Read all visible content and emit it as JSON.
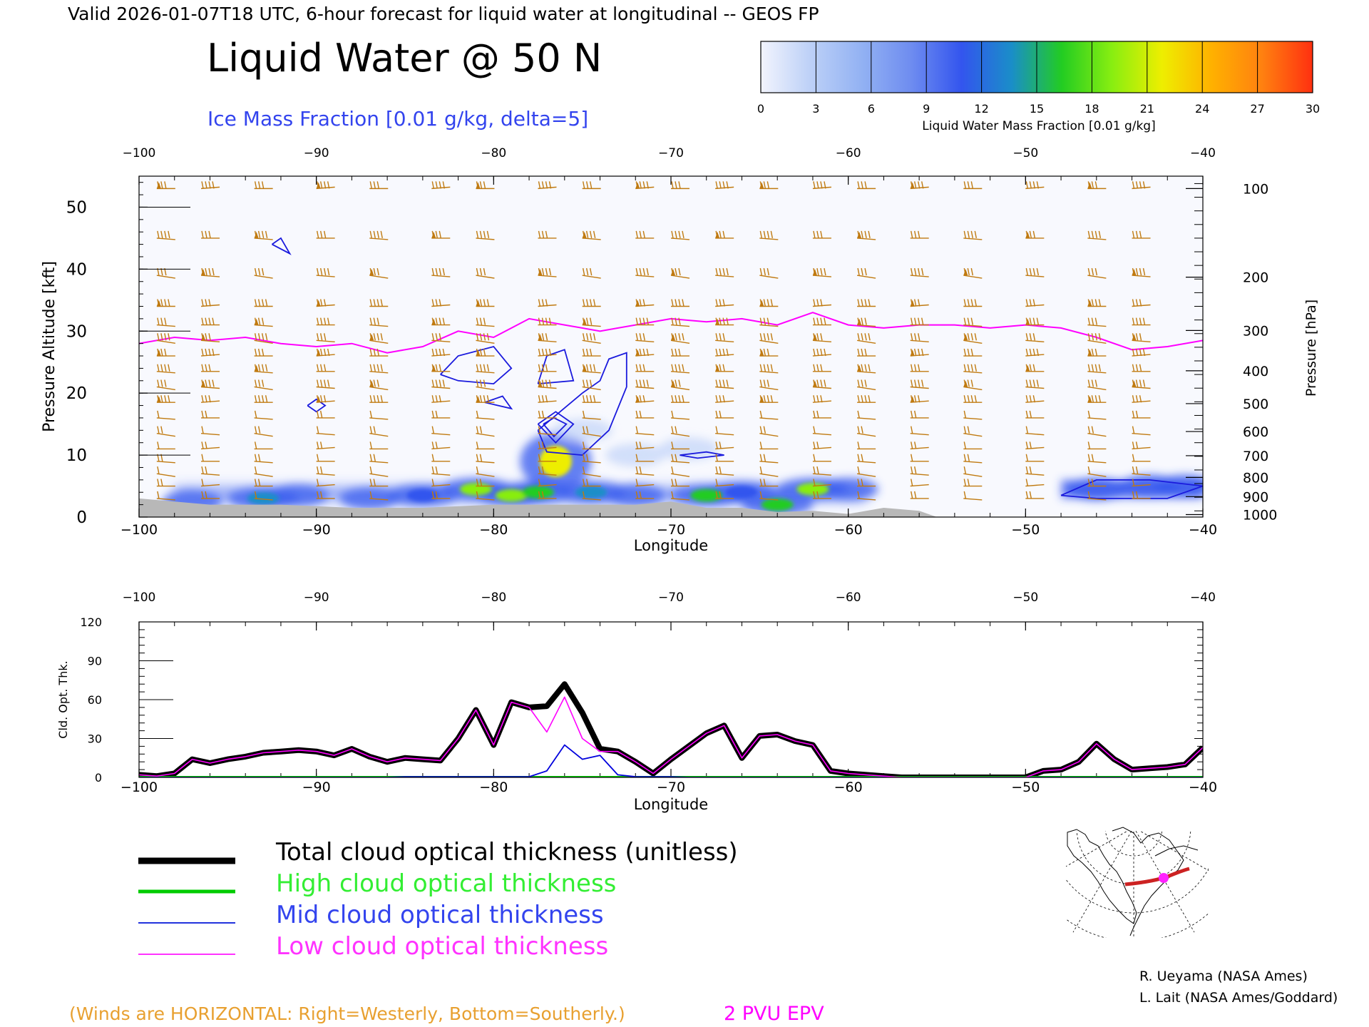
{
  "header": {
    "valid_line": "Valid 2026-01-07T18 UTC, 6-hour forecast for liquid water at longitudinal -- GEOS FP",
    "title": "Liquid Water @ 50 N",
    "subtitle": "Ice Mass Fraction [0.01 g/kg, delta=5]"
  },
  "colorbar": {
    "ticks": [
      "0",
      "3",
      "6",
      "9",
      "12",
      "15",
      "18",
      "21",
      "24",
      "27",
      "30"
    ],
    "label": "Liquid Water Mass Fraction [0.01 g/kg]",
    "colors": [
      "#f2f4fd",
      "#bcd0f7",
      "#93b2f3",
      "#6e8cf0",
      "#3355ee",
      "#1a8ec8",
      "#22cc22",
      "#88ee11",
      "#eeee00",
      "#ffb000",
      "#ff8010",
      "#ff3010"
    ]
  },
  "chart_data": [
    {
      "type": "heatmap",
      "title": "Liquid Water @ 50 N",
      "xlabel": "Longitude",
      "ylabel": "Pressure Altitude [kft]",
      "y2label": "Pressure [hPa]",
      "xlim": [
        -100,
        -40
      ],
      "ylim": [
        0,
        55
      ],
      "x_ticks": [
        "−100",
        "−90",
        "−80",
        "−70",
        "−60",
        "−50",
        "−40"
      ],
      "y_ticks": [
        "0",
        "10",
        "20",
        "30",
        "40",
        "50"
      ],
      "pressure_ticks": [
        "100",
        "200",
        "300",
        "400",
        "500",
        "600",
        "700",
        "800",
        "900",
        "1000"
      ],
      "pressure_tick_kft": [
        53.0,
        38.7,
        30.1,
        23.6,
        18.3,
        13.8,
        9.9,
        6.4,
        3.3,
        0.4
      ],
      "epv_2pvu_kft": [
        [
          -100,
          28
        ],
        [
          -98,
          29
        ],
        [
          -96,
          28.5
        ],
        [
          -94,
          29
        ],
        [
          -92,
          28
        ],
        [
          -90,
          27.5
        ],
        [
          -88,
          28
        ],
        [
          -86,
          26.5
        ],
        [
          -84,
          27.5
        ],
        [
          -82,
          30
        ],
        [
          -80,
          29
        ],
        [
          -78,
          32
        ],
        [
          -76,
          31
        ],
        [
          -74,
          30
        ],
        [
          -72,
          31
        ],
        [
          -70,
          32
        ],
        [
          -68,
          31.5
        ],
        [
          -66,
          32
        ],
        [
          -64,
          31
        ],
        [
          -62,
          33
        ],
        [
          -60,
          31
        ],
        [
          -58,
          30.5
        ],
        [
          -56,
          31
        ],
        [
          -54,
          31
        ],
        [
          -52,
          30.5
        ],
        [
          -50,
          31
        ],
        [
          -48,
          30.5
        ],
        [
          -46,
          29
        ],
        [
          -44,
          27
        ],
        [
          -42,
          27.5
        ],
        [
          -40,
          28.5
        ]
      ],
      "liquid_water_blobs": [
        {
          "lon": -97,
          "kft": 2.5,
          "value": 6
        },
        {
          "lon": -93,
          "kft": 3,
          "value": 14
        },
        {
          "lon": -91,
          "kft": 3.5,
          "value": 10
        },
        {
          "lon": -87,
          "kft": 3,
          "value": 8
        },
        {
          "lon": -84,
          "kft": 3.5,
          "value": 12
        },
        {
          "lon": -81,
          "kft": 4.5,
          "value": 20
        },
        {
          "lon": -79,
          "kft": 3.5,
          "value": 18
        },
        {
          "lon": -77.5,
          "kft": 4,
          "value": 16
        },
        {
          "lon": -76.5,
          "kft": 9,
          "value": 22
        },
        {
          "lon": -74.5,
          "kft": 4,
          "value": 14
        },
        {
          "lon": -72,
          "kft": 3.5,
          "value": 7
        },
        {
          "lon": -68,
          "kft": 3.5,
          "value": 16
        },
        {
          "lon": -66,
          "kft": 4,
          "value": 12
        },
        {
          "lon": -64,
          "kft": 2,
          "value": 15
        },
        {
          "lon": -62,
          "kft": 4.5,
          "value": 18
        },
        {
          "lon": -60,
          "kft": 4.5,
          "value": 7
        },
        {
          "lon": -69,
          "kft": 11,
          "value": 4
        },
        {
          "lon": -72,
          "kft": 10,
          "value": 3
        },
        {
          "lon": -75,
          "kft": 14,
          "value": 3
        },
        {
          "lon": -46,
          "kft": 4.5,
          "value": 8
        },
        {
          "lon": -43,
          "kft": 5,
          "value": 7
        },
        {
          "lon": -41,
          "kft": 5,
          "value": 6
        }
      ],
      "ice_contours_kft": [
        [
          [
            -83,
            23
          ],
          [
            -82,
            26
          ],
          [
            -80,
            27.5
          ],
          [
            -79,
            24
          ],
          [
            -80,
            21.5
          ],
          [
            -82,
            22
          ],
          [
            -83,
            23
          ]
        ],
        [
          [
            -80.5,
            18.5
          ],
          [
            -79.5,
            19.5
          ],
          [
            -79,
            17.5
          ],
          [
            -80.5,
            18.5
          ]
        ],
        [
          [
            -77.5,
            21.5
          ],
          [
            -77,
            26
          ],
          [
            -76,
            27
          ],
          [
            -75.5,
            22
          ],
          [
            -77.5,
            21.5
          ]
        ],
        [
          [
            -77.5,
            14
          ],
          [
            -75,
            20
          ],
          [
            -74,
            22
          ],
          [
            -73.5,
            25.5
          ],
          [
            -72.5,
            26.5
          ],
          [
            -72.5,
            21
          ],
          [
            -73.5,
            14
          ],
          [
            -75,
            10
          ],
          [
            -77,
            10.5
          ],
          [
            -77.5,
            14
          ]
        ],
        [
          [
            -77.5,
            15
          ],
          [
            -76.5,
            17
          ],
          [
            -75.5,
            15
          ],
          [
            -76.5,
            12
          ],
          [
            -77.5,
            15
          ]
        ],
        [
          [
            -77.2,
            15
          ],
          [
            -76.6,
            16
          ],
          [
            -75.9,
            15
          ],
          [
            -76.6,
            13
          ],
          [
            -77.2,
            15
          ]
        ],
        [
          [
            -90.5,
            18
          ],
          [
            -90,
            19
          ],
          [
            -89.5,
            18
          ],
          [
            -90,
            17
          ],
          [
            -90.5,
            18
          ]
        ],
        [
          [
            -92.5,
            44
          ],
          [
            -92,
            45
          ],
          [
            -91.5,
            42.5
          ],
          [
            -92.5,
            44
          ]
        ],
        [
          [
            -69.5,
            10
          ],
          [
            -68,
            10.5
          ],
          [
            -67,
            10
          ],
          [
            -68.5,
            9.5
          ],
          [
            -69.5,
            10
          ]
        ],
        [
          [
            -48,
            3.5
          ],
          [
            -46,
            6
          ],
          [
            -43,
            6
          ],
          [
            -40,
            5
          ],
          [
            -42,
            3
          ],
          [
            -46,
            3
          ],
          [
            -48,
            3.5
          ]
        ]
      ],
      "surface_kft": [
        [
          -100,
          3
        ],
        [
          -96,
          2
        ],
        [
          -92,
          2
        ],
        [
          -88,
          1.5
        ],
        [
          -84,
          1.5
        ],
        [
          -80,
          2
        ],
        [
          -76,
          2
        ],
        [
          -72,
          2
        ],
        [
          -70,
          2.5
        ],
        [
          -68,
          1.5
        ],
        [
          -66,
          1.5
        ],
        [
          -64,
          0.8
        ],
        [
          -62,
          1
        ],
        [
          -60,
          0.5
        ],
        [
          -58,
          1.5
        ],
        [
          -56,
          1
        ],
        [
          -55,
          0
        ],
        [
          -40,
          0
        ]
      ],
      "wind_columns_lon": [
        -99,
        -96.5,
        -93.5,
        -90,
        -87,
        -83.5,
        -81,
        -77.5,
        -75,
        -72,
        -70,
        -67.5,
        -65,
        -62,
        -59.5,
        -56.5,
        -53.5,
        -50,
        -46.5,
        -44
      ]
    },
    {
      "type": "line",
      "xlabel": "Longitude",
      "ylabel": "Cld. Opt. Thk.",
      "xlim": [
        -100,
        -40
      ],
      "ylim": [
        0,
        120
      ],
      "x_ticks": [
        "−100",
        "−90",
        "−80",
        "−70",
        "−60",
        "−50",
        "−40"
      ],
      "y_ticks": [
        "0",
        "30",
        "60",
        "90",
        "120"
      ],
      "x": [
        -100,
        -99,
        -98,
        -97,
        -96,
        -95,
        -94,
        -93,
        -92,
        -91,
        -90,
        -89,
        -88,
        -87,
        -86,
        -85,
        -84,
        -83,
        -82,
        -81,
        -80,
        -79,
        -78,
        -77,
        -76,
        -75,
        -74,
        -73,
        -72,
        -71,
        -70,
        -69,
        -68,
        -67,
        -66,
        -65,
        -64,
        -63,
        -62,
        -61,
        -60,
        -59,
        -58,
        -57,
        -56,
        -55,
        -54,
        -53,
        -52,
        -51,
        -50,
        -49,
        -48,
        -47,
        -46,
        -45,
        -44,
        -43,
        -42,
        -41,
        -40
      ],
      "series": [
        {
          "name": "Total cloud optical thickness (unitless)",
          "color": "#000000",
          "values": [
            2,
            1,
            3,
            14,
            11,
            14,
            16,
            19,
            20,
            21,
            20,
            17,
            22,
            16,
            12,
            15,
            14,
            13,
            30,
            52,
            25,
            58,
            54,
            55,
            72,
            50,
            22,
            20,
            12,
            3,
            14,
            24,
            34,
            40,
            15,
            32,
            33,
            28,
            25,
            5,
            3,
            2,
            1,
            0,
            0,
            0,
            0,
            0,
            0,
            0,
            0,
            5,
            6,
            12,
            26,
            14,
            6,
            7,
            8,
            10,
            23
          ]
        },
        {
          "name": "High cloud optical thickness",
          "color": "#00cc00",
          "values": [
            0,
            0,
            0,
            0,
            0,
            0,
            0,
            0,
            0,
            0,
            0,
            0,
            0,
            0,
            0,
            0,
            0,
            0,
            0,
            0,
            0,
            0,
            0,
            0,
            0,
            0,
            0,
            0,
            0,
            0,
            0,
            0,
            0,
            0,
            0,
            0,
            0,
            0,
            0,
            0,
            0,
            0,
            0,
            0,
            0,
            0,
            0,
            0,
            0,
            0,
            0,
            0,
            0,
            0,
            0,
            0,
            0,
            0,
            0,
            0,
            0
          ]
        },
        {
          "name": "Mid cloud optical thickness",
          "color": "#0000dd",
          "values": [
            0,
            0,
            0,
            0,
            0,
            0,
            0,
            0,
            0,
            0,
            0,
            0,
            0,
            0,
            0,
            0.5,
            0.5,
            0.5,
            0.5,
            0.5,
            0.5,
            0.5,
            0.5,
            5,
            25,
            14,
            17,
            2,
            0.5,
            0.5,
            0.5,
            0,
            0,
            0,
            0,
            0,
            0,
            0,
            0,
            0,
            0,
            0,
            0,
            0,
            0,
            0,
            0,
            0,
            0,
            0,
            0,
            0,
            0,
            0,
            0,
            0,
            0,
            0,
            0,
            0,
            0
          ]
        },
        {
          "name": "Low cloud optical thickness",
          "color": "#ff00ff",
          "values": [
            2,
            1,
            3,
            14,
            11,
            14,
            16,
            19,
            20,
            21,
            20,
            17,
            22,
            16,
            12,
            15,
            14,
            13,
            30,
            52,
            25,
            58,
            54,
            35,
            62,
            30,
            20,
            20,
            12,
            3,
            14,
            24,
            34,
            40,
            15,
            32,
            33,
            28,
            25,
            5,
            3,
            2,
            1,
            0,
            0,
            0,
            0,
            0,
            0,
            0,
            0,
            5,
            6,
            12,
            26,
            14,
            6,
            7,
            8,
            10,
            23
          ]
        }
      ]
    }
  ],
  "legend": {
    "items": [
      {
        "label": "Total cloud optical thickness (unitless)",
        "color": "#000000"
      },
      {
        "label": "High cloud optical thickness",
        "color": "#00cc00"
      },
      {
        "label": "Mid cloud optical thickness",
        "color": "#2233dd"
      },
      {
        "label": "Low cloud optical thickness",
        "color": "#ff33ff"
      }
    ]
  },
  "footer": {
    "winds_note": "(Winds are HORIZONTAL: Right=Westerly, Bottom=Southerly.)",
    "epv_label": "2 PVU EPV",
    "credit1": "R. Ueyama (NASA Ames)",
    "credit2": "L. Lait (NASA Ames/Goddard)"
  },
  "colors": {
    "epv": "#ff00ff",
    "ice_contour": "#1a1add",
    "wind_barb": "#c07a10",
    "terrain": "#b8b8b8",
    "winds_note": "#e8a030",
    "subtitle": "#3344ee"
  }
}
